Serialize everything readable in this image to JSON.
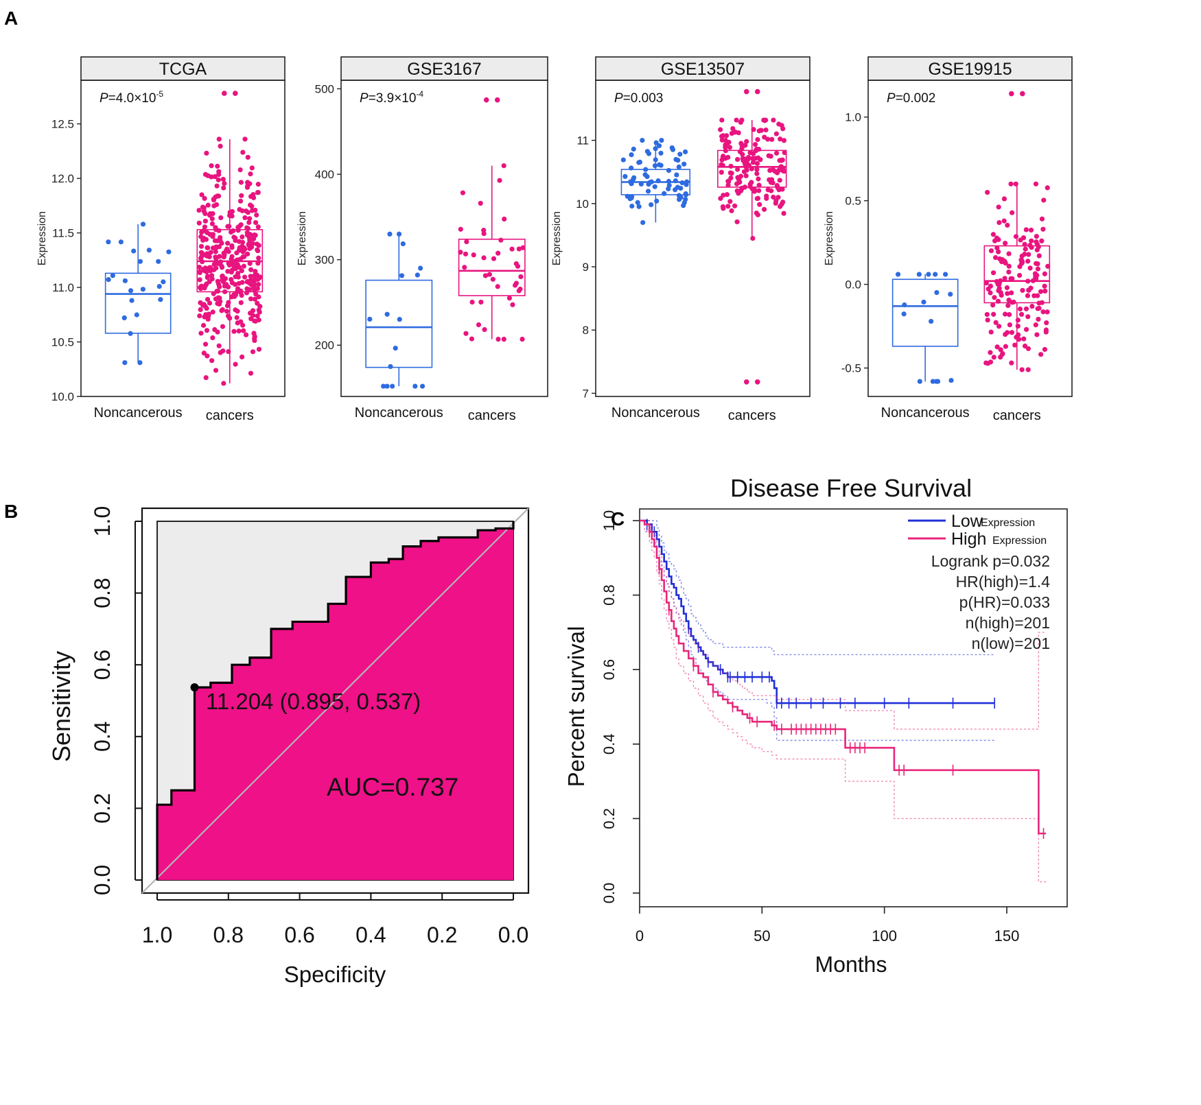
{
  "panel_labels": [
    "A",
    "B",
    "C"
  ],
  "colors": {
    "noncancer": "#2f6be0",
    "cancer": "#e8147f",
    "strip_fill": "#ececec",
    "roc_fill": "#ee1187",
    "roc_bg": "#ececec",
    "low_line": "#1f2ed8",
    "high_line": "#e8267a",
    "diag": "#b5b5b5"
  },
  "chart_data": [
    {
      "type": "box",
      "panel": "A",
      "strip_title": "TCGA",
      "pvalue": {
        "label": "P",
        "text": "=4.0×10",
        "exp": "-5"
      },
      "ylabel": "Expression",
      "ylim": [
        10.0,
        12.9
      ],
      "yticks": [
        10.0,
        10.5,
        11.0,
        11.5,
        12.0,
        12.5
      ],
      "ytick_labels": [
        "10.0",
        "10.5",
        "11.0",
        "11.5",
        "12.0",
        "12.5"
      ],
      "categories": [
        "Noncancerous",
        "cancers"
      ],
      "boxes": [
        {
          "name": "Noncancerous",
          "min": 10.31,
          "q1": 10.58,
          "median": 10.94,
          "q3": 11.13,
          "max": 11.58,
          "n": 20,
          "outliers": []
        },
        {
          "name": "cancers",
          "min": 10.12,
          "q1": 10.96,
          "median": 11.24,
          "q3": 11.53,
          "max": 12.36,
          "n": 380,
          "outliers": [
            12.78,
            12.78
          ]
        }
      ]
    },
    {
      "type": "box",
      "panel": "A",
      "strip_title": "GSE3167",
      "pvalue": {
        "label": "P",
        "text": "=3.9×10",
        "exp": "-4"
      },
      "ylabel": "Expression",
      "ylim": [
        140,
        510
      ],
      "yticks": [
        200,
        300,
        400,
        500
      ],
      "ytick_labels": [
        "200",
        "300",
        "400",
        "500"
      ],
      "categories": [
        "Noncancerous",
        "cancers"
      ],
      "boxes": [
        {
          "name": "Noncancerous",
          "min": 152,
          "q1": 174,
          "median": 221,
          "q3": 276,
          "max": 330,
          "n": 14,
          "outliers": []
        },
        {
          "name": "cancers",
          "min": 207,
          "q1": 258,
          "median": 287,
          "q3": 324,
          "max": 410,
          "n": 40,
          "outliers": [
            487,
            487
          ]
        }
      ]
    },
    {
      "type": "box",
      "panel": "A",
      "strip_title": "GSE13507",
      "pvalue": {
        "label": "P",
        "text": "=0.003",
        "exp": ""
      },
      "ylabel": "Expression",
      "ylim": [
        6.95,
        11.95
      ],
      "yticks": [
        7,
        8,
        9,
        10,
        11
      ],
      "ytick_labels": [
        "7",
        "8",
        "9",
        "10",
        "11"
      ],
      "categories": [
        "Noncancerous",
        "cancers"
      ],
      "boxes": [
        {
          "name": "Noncancerous",
          "min": 9.7,
          "q1": 10.14,
          "median": 10.34,
          "q3": 10.54,
          "max": 11.0,
          "n": 70,
          "outliers": []
        },
        {
          "name": "cancers",
          "min": 9.45,
          "q1": 10.26,
          "median": 10.58,
          "q3": 10.84,
          "max": 11.32,
          "n": 170,
          "outliers": [
            11.77,
            11.77,
            7.18,
            7.18
          ]
        }
      ]
    },
    {
      "type": "box",
      "panel": "A",
      "strip_title": "GSE19915",
      "pvalue": {
        "label": "P",
        "text": "=0.002",
        "exp": ""
      },
      "ylabel": "Expression",
      "ylim": [
        -0.67,
        1.22
      ],
      "yticks": [
        -0.5,
        0.0,
        0.5,
        1.0
      ],
      "ytick_labels": [
        "-0.5",
        "0.0",
        "0.5",
        "1.0"
      ],
      "categories": [
        "Noncancerous",
        "cancers"
      ],
      "boxes": [
        {
          "name": "Noncancerous",
          "min": -0.58,
          "q1": -0.37,
          "median": -0.13,
          "q3": 0.03,
          "max": 0.06,
          "n": 14,
          "outliers": []
        },
        {
          "name": "cancers",
          "min": -0.51,
          "q1": -0.11,
          "median": 0.02,
          "q3": 0.23,
          "max": 0.6,
          "n": 160,
          "outliers": [
            1.14,
            1.14
          ]
        }
      ]
    },
    {
      "type": "roc",
      "panel": "B",
      "xlabel": "Specificity",
      "ylabel": "Sensitivity",
      "xlim": [
        1.0,
        0.0
      ],
      "ylim": [
        0.0,
        1.0
      ],
      "ticks": [
        0.0,
        0.2,
        0.4,
        0.6,
        0.8,
        1.0
      ],
      "xtick_labels": [
        "1.0",
        "0.8",
        "0.6",
        "0.4",
        "0.2",
        "0.0"
      ],
      "ytick_labels": [
        "0.0",
        "0.2",
        "0.4",
        "0.6",
        "0.8",
        "1.0"
      ],
      "curve": {
        "specificity": [
          1.0,
          1.0,
          0.96,
          0.96,
          0.895,
          0.895,
          0.85,
          0.85,
          0.79,
          0.79,
          0.74,
          0.74,
          0.68,
          0.68,
          0.62,
          0.62,
          0.52,
          0.52,
          0.47,
          0.47,
          0.4,
          0.4,
          0.35,
          0.35,
          0.31,
          0.31,
          0.26,
          0.26,
          0.21,
          0.21,
          0.1,
          0.1,
          0.05,
          0.05,
          0.0,
          0.0
        ],
        "sensitivity": [
          0.0,
          0.21,
          0.21,
          0.25,
          0.25,
          0.537,
          0.537,
          0.55,
          0.55,
          0.6,
          0.6,
          0.62,
          0.62,
          0.7,
          0.7,
          0.72,
          0.72,
          0.77,
          0.77,
          0.845,
          0.845,
          0.885,
          0.885,
          0.895,
          0.895,
          0.93,
          0.93,
          0.945,
          0.945,
          0.955,
          0.955,
          0.975,
          0.975,
          0.98,
          0.98,
          1.0
        ]
      },
      "best_point": {
        "specificity": 0.895,
        "sensitivity": 0.537,
        "label": "11.204 (0.895, 0.537)"
      },
      "auc_label": "AUC=0.737"
    },
    {
      "type": "line",
      "panel": "C",
      "title": "Disease Free Survival",
      "xlabel": "Months",
      "ylabel": "Percent survival",
      "xlim": [
        0,
        170
      ],
      "ylim": [
        0.0,
        1.0
      ],
      "xticks": [
        0,
        50,
        100,
        150
      ],
      "yticks": [
        0.0,
        0.2,
        0.4,
        0.6,
        0.8,
        1.0
      ],
      "xtick_labels": [
        "0",
        "50",
        "100",
        "150"
      ],
      "ytick_labels": [
        "0.0",
        "0.2",
        "0.4",
        "0.6",
        "0.8",
        "1.0"
      ],
      "legend": {
        "position": "top-right",
        "entries": [
          {
            "name": "Low",
            "suffix": "Expression"
          },
          {
            "name": "High",
            "suffix": "Expression"
          }
        ]
      },
      "stats": [
        "Logrank p=0.032",
        "HR(high)=1.4",
        "p(HR)=0.033",
        "n(high)=201",
        "n(low)=201"
      ],
      "series": [
        {
          "name": "Low",
          "x": [
            0,
            3,
            5,
            7,
            8,
            9,
            10,
            11,
            12,
            13,
            14,
            15,
            16,
            17,
            18,
            19,
            20,
            21,
            22,
            23,
            24,
            25,
            26,
            27,
            28,
            30,
            32,
            34,
            36,
            40,
            44,
            48,
            52,
            54,
            55,
            56,
            60,
            70,
            80,
            100,
            120,
            145
          ],
          "y": [
            1.0,
            0.99,
            0.97,
            0.95,
            0.93,
            0.91,
            0.89,
            0.87,
            0.85,
            0.83,
            0.82,
            0.8,
            0.79,
            0.77,
            0.75,
            0.73,
            0.71,
            0.69,
            0.68,
            0.67,
            0.66,
            0.65,
            0.64,
            0.63,
            0.62,
            0.61,
            0.6,
            0.59,
            0.58,
            0.58,
            0.58,
            0.58,
            0.58,
            0.57,
            0.55,
            0.51,
            0.51,
            0.51,
            0.51,
            0.51,
            0.51,
            0.51
          ],
          "upper": [
            1.0,
            1.0,
            1.0,
            0.98,
            0.96,
            0.94,
            0.92,
            0.91,
            0.89,
            0.88,
            0.87,
            0.85,
            0.84,
            0.82,
            0.8,
            0.79,
            0.77,
            0.75,
            0.74,
            0.73,
            0.72,
            0.71,
            0.7,
            0.69,
            0.68,
            0.67,
            0.67,
            0.66,
            0.66,
            0.66,
            0.66,
            0.66,
            0.66,
            0.65,
            0.64,
            0.64,
            0.64,
            0.64,
            0.64,
            0.64,
            0.64,
            0.64
          ],
          "lower": [
            1.0,
            0.97,
            0.94,
            0.91,
            0.89,
            0.87,
            0.85,
            0.83,
            0.81,
            0.79,
            0.77,
            0.75,
            0.74,
            0.72,
            0.7,
            0.68,
            0.66,
            0.64,
            0.63,
            0.61,
            0.6,
            0.59,
            0.58,
            0.57,
            0.56,
            0.55,
            0.54,
            0.53,
            0.52,
            0.52,
            0.52,
            0.52,
            0.51,
            0.5,
            0.47,
            0.41,
            0.41,
            0.41,
            0.41,
            0.41,
            0.41,
            0.41
          ],
          "censor_x": [
            3,
            6,
            20,
            24,
            28,
            33,
            36,
            37,
            40,
            43,
            46,
            50,
            53,
            56,
            58,
            61,
            64,
            70,
            75,
            82,
            88,
            100,
            110,
            128,
            145
          ]
        },
        {
          "name": "High",
          "x": [
            0,
            2,
            4,
            5,
            6,
            7,
            8,
            9,
            10,
            11,
            12,
            13,
            14,
            15,
            16,
            18,
            20,
            22,
            24,
            26,
            28,
            30,
            32,
            34,
            36,
            38,
            40,
            42,
            44,
            46,
            50,
            54,
            56,
            60,
            70,
            80,
            84,
            90,
            100,
            104,
            120,
            140,
            162,
            163,
            166
          ],
          "y": [
            1.0,
            0.99,
            0.97,
            0.95,
            0.93,
            0.9,
            0.87,
            0.84,
            0.81,
            0.78,
            0.76,
            0.73,
            0.71,
            0.69,
            0.67,
            0.65,
            0.63,
            0.61,
            0.59,
            0.58,
            0.56,
            0.54,
            0.53,
            0.52,
            0.51,
            0.5,
            0.49,
            0.48,
            0.47,
            0.46,
            0.46,
            0.45,
            0.44,
            0.44,
            0.44,
            0.44,
            0.39,
            0.39,
            0.39,
            0.33,
            0.33,
            0.33,
            0.33,
            0.16,
            0.16
          ],
          "upper": [
            1.0,
            1.0,
            0.99,
            0.97,
            0.96,
            0.94,
            0.91,
            0.88,
            0.85,
            0.83,
            0.81,
            0.79,
            0.77,
            0.75,
            0.73,
            0.71,
            0.69,
            0.67,
            0.65,
            0.64,
            0.62,
            0.61,
            0.6,
            0.59,
            0.58,
            0.57,
            0.56,
            0.55,
            0.54,
            0.53,
            0.53,
            0.53,
            0.52,
            0.52,
            0.52,
            0.52,
            0.49,
            0.49,
            0.49,
            0.44,
            0.44,
            0.44,
            0.44,
            0.7,
            0.7
          ],
          "lower": [
            1.0,
            0.97,
            0.94,
            0.92,
            0.9,
            0.86,
            0.83,
            0.79,
            0.76,
            0.73,
            0.71,
            0.68,
            0.66,
            0.63,
            0.61,
            0.59,
            0.57,
            0.55,
            0.53,
            0.51,
            0.49,
            0.47,
            0.46,
            0.45,
            0.44,
            0.43,
            0.42,
            0.41,
            0.4,
            0.39,
            0.38,
            0.37,
            0.36,
            0.36,
            0.36,
            0.36,
            0.3,
            0.3,
            0.3,
            0.2,
            0.2,
            0.2,
            0.2,
            0.03,
            0.03
          ],
          "censor_x": [
            4,
            8,
            12,
            22,
            30,
            38,
            45,
            48,
            55,
            58,
            62,
            64,
            66,
            68,
            70,
            72,
            74,
            76,
            78,
            80,
            86,
            88,
            90,
            92,
            106,
            108,
            128,
            165
          ]
        }
      ]
    }
  ]
}
